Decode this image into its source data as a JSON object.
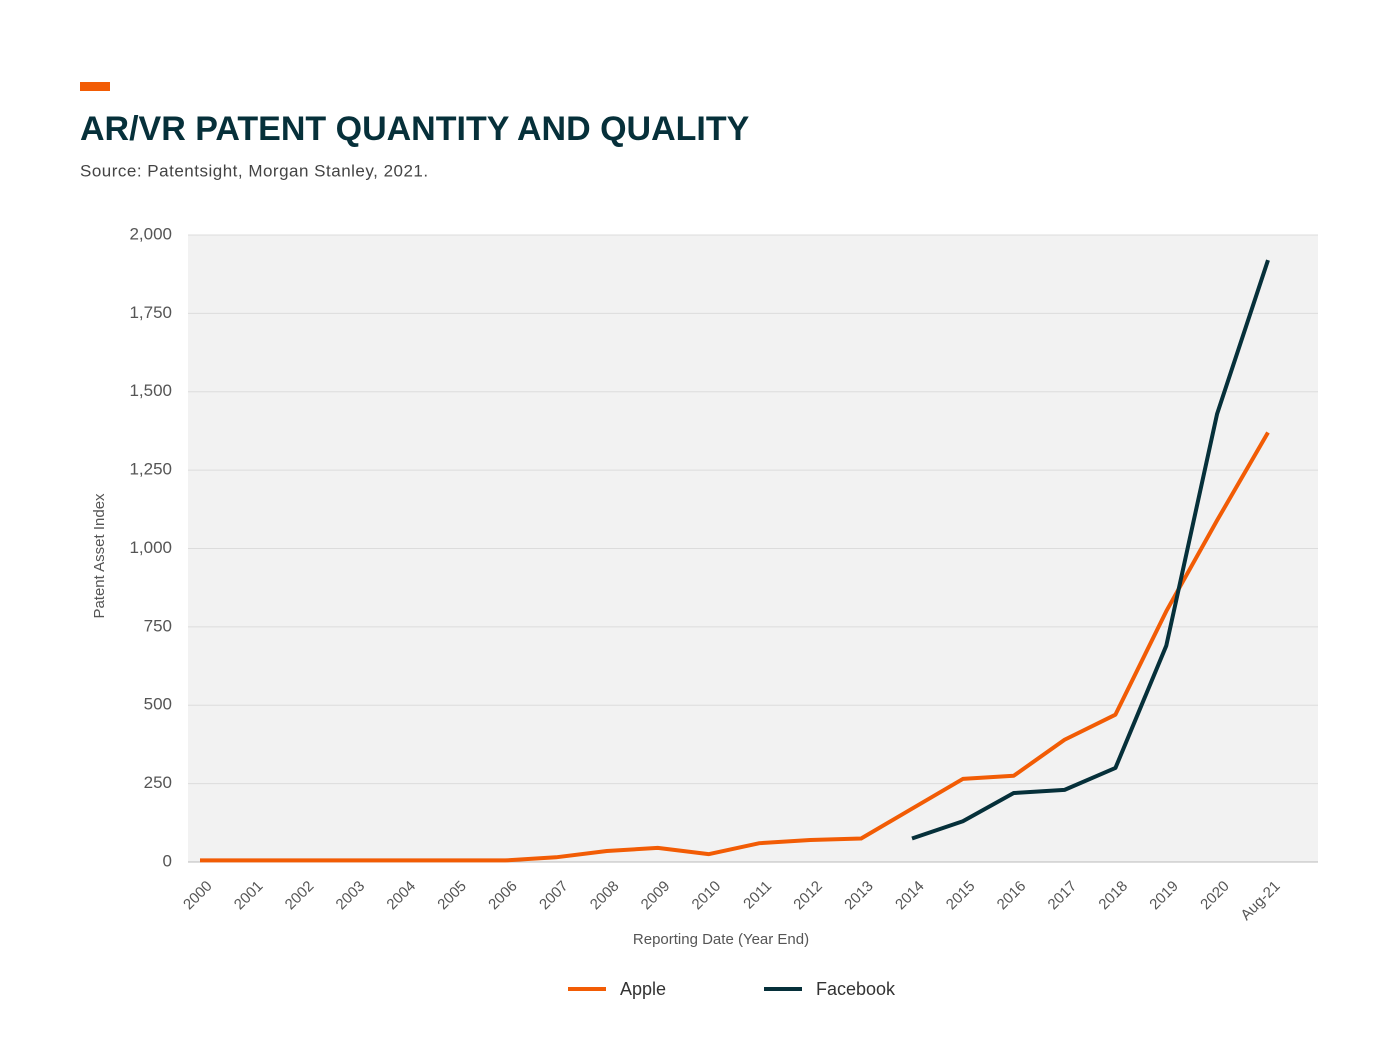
{
  "chart_data": {
    "type": "line",
    "title": "AR/VR PATENT QUANTITY AND QUALITY",
    "subtitle": "Source: Patentsight, Morgan Stanley, 2021.",
    "x_label": "Reporting Date (Year End)",
    "y_label": "Patent Asset Index",
    "categories": [
      "2000",
      "2001",
      "2002",
      "2003",
      "2004",
      "2005",
      "2006",
      "2007",
      "2008",
      "2009",
      "2010",
      "2011",
      "2012",
      "2013",
      "2014",
      "2015",
      "2016",
      "2017",
      "2018",
      "2019",
      "2020",
      "Aug-21"
    ],
    "series": [
      {
        "name": "Apple",
        "color": "#f25c05",
        "values": [
          5,
          5,
          5,
          5,
          5,
          5,
          5,
          15,
          35,
          45,
          25,
          60,
          70,
          75,
          170,
          265,
          275,
          390,
          470,
          800,
          1090,
          1370
        ]
      },
      {
        "name": "Facebook",
        "color": "#06303a",
        "values": [
          null,
          null,
          null,
          null,
          null,
          null,
          null,
          null,
          null,
          null,
          null,
          null,
          null,
          null,
          75,
          130,
          220,
          230,
          300,
          690,
          1430,
          1920
        ]
      }
    ],
    "ylim": [
      0,
      2000
    ],
    "yticks": [
      0,
      250,
      500,
      750,
      {
        "value": 1000,
        "label": "1,000"
      },
      {
        "value": 1250,
        "label": "1,250"
      },
      {
        "value": 1500,
        "label": "1,500"
      },
      {
        "value": 1750,
        "label": "1,750"
      },
      {
        "value": 2000,
        "label": "2,000"
      }
    ],
    "grid": true,
    "legend": "bottom"
  }
}
